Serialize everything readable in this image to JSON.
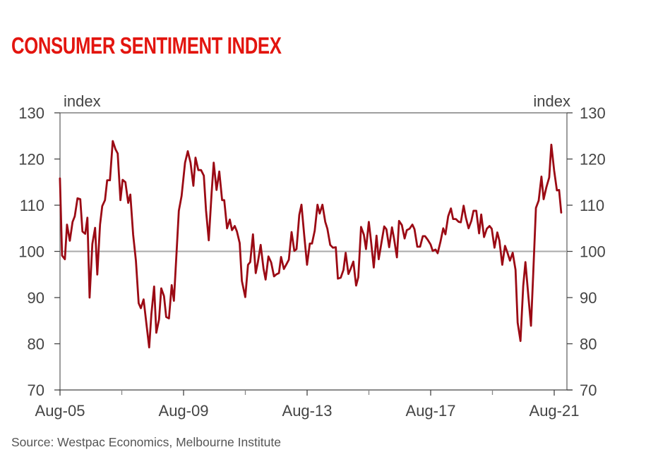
{
  "chart_data": {
    "type": "line",
    "title": "CONSUMER SENTIMENT INDEX",
    "source": "Source: Westpac Economics, Melbourne Institute",
    "ylabel_left": "index",
    "ylabel_right": "index",
    "xlabel": "",
    "ylim": [
      70,
      130
    ],
    "yticks": [
      70,
      80,
      90,
      100,
      110,
      120,
      130
    ],
    "ytick_labels": [
      "70",
      "80",
      "90",
      "100",
      "110",
      "120",
      "130"
    ],
    "xlim": [
      2005.583,
      2022.0
    ],
    "xticks_major": [
      2005.583,
      2009.583,
      2013.583,
      2017.583,
      2021.583
    ],
    "xtick_labels": [
      "Aug-05",
      "Aug-09",
      "Aug-13",
      "Aug-17",
      "Aug-21"
    ],
    "xticks_minor": [
      2007.583,
      2011.583,
      2015.583,
      2019.583
    ],
    "reference_line": 100,
    "grid": false,
    "legend": "none",
    "line_color": "#9b0a14",
    "series": [
      {
        "name": "Consumer Sentiment Index",
        "x": [
          2005.58,
          2005.65,
          2005.74,
          2005.81,
          2005.9,
          2005.99,
          2006.06,
          2006.15,
          2006.24,
          2006.31,
          2006.4,
          2006.47,
          2006.54,
          2006.63,
          2006.72,
          2006.79,
          2006.88,
          2006.95,
          2007.04,
          2007.11,
          2007.2,
          2007.29,
          2007.38,
          2007.45,
          2007.54,
          2007.61,
          2007.7,
          2007.79,
          2007.86,
          2007.95,
          2008.04,
          2008.13,
          2008.2,
          2008.29,
          2008.38,
          2008.47,
          2008.54,
          2008.63,
          2008.7,
          2008.79,
          2008.86,
          2008.95,
          2009.02,
          2009.11,
          2009.2,
          2009.27,
          2009.36,
          2009.43,
          2009.52,
          2009.63,
          2009.72,
          2009.81,
          2009.9,
          2009.97,
          2010.06,
          2010.15,
          2010.24,
          2010.31,
          2010.4,
          2010.49,
          2010.56,
          2010.65,
          2010.74,
          2010.83,
          2010.9,
          2010.99,
          2011.08,
          2011.15,
          2011.24,
          2011.31,
          2011.4,
          2011.47,
          2011.58,
          2011.67,
          2011.74,
          2011.83,
          2011.92,
          2011.99,
          2012.08,
          2012.17,
          2012.24,
          2012.33,
          2012.42,
          2012.51,
          2012.58,
          2012.67,
          2012.74,
          2012.83,
          2012.92,
          2012.99,
          2013.08,
          2013.17,
          2013.24,
          2013.33,
          2013.4,
          2013.49,
          2013.58,
          2013.67,
          2013.74,
          2013.83,
          2013.92,
          2013.99,
          2014.08,
          2014.17,
          2014.24,
          2014.33,
          2014.42,
          2014.51,
          2014.58,
          2014.67,
          2014.76,
          2014.83,
          2014.92,
          2014.99,
          2015.08,
          2015.17,
          2015.24,
          2015.33,
          2015.42,
          2015.49,
          2015.58,
          2015.65,
          2015.74,
          2015.83,
          2015.9,
          2015.99,
          2016.08,
          2016.15,
          2016.24,
          2016.33,
          2016.4,
          2016.49,
          2016.56,
          2016.65,
          2016.74,
          2016.81,
          2016.9,
          2016.99,
          2017.06,
          2017.15,
          2017.24,
          2017.33,
          2017.4,
          2017.49,
          2017.58,
          2017.65,
          2017.74,
          2017.81,
          2017.9,
          2017.99,
          2018.06,
          2018.15,
          2018.24,
          2018.31,
          2018.4,
          2018.49,
          2018.56,
          2018.65,
          2018.72,
          2018.81,
          2018.9,
          2018.97,
          2019.06,
          2019.15,
          2019.22,
          2019.31,
          2019.4,
          2019.49,
          2019.56,
          2019.65,
          2019.74,
          2019.81,
          2019.9,
          2019.99,
          2020.06,
          2020.15,
          2020.24,
          2020.33,
          2020.4,
          2020.49,
          2020.58,
          2020.65,
          2020.74,
          2020.83,
          2020.9,
          2020.99,
          2021.08,
          2021.17,
          2021.24,
          2021.33,
          2021.42,
          2021.49,
          2021.58,
          2021.67,
          2021.74,
          2021.81
        ],
        "values": [
          115.8,
          99.1,
          98.3,
          105.8,
          102.3,
          106.4,
          107.6,
          111.5,
          111.3,
          104.3,
          103.8,
          107.3,
          90.0,
          101.6,
          105.1,
          95.0,
          105.8,
          109.8,
          111.1,
          115.4,
          115.4,
          123.9,
          122.1,
          121.2,
          111.1,
          115.5,
          115.0,
          110.5,
          112.3,
          103.6,
          98.0,
          88.8,
          87.7,
          89.6,
          84.3,
          79.2,
          86.4,
          92.4,
          82.4,
          85.3,
          92.0,
          90.3,
          85.8,
          85.5,
          92.7,
          89.3,
          100.1,
          108.8,
          112.0,
          119.2,
          121.7,
          119.2,
          114.2,
          120.3,
          117.6,
          117.6,
          116.4,
          108.9,
          102.4,
          112.6,
          119.2,
          113.3,
          117.3,
          111.1,
          111.1,
          105.0,
          106.9,
          104.6,
          105.5,
          104.3,
          101.8,
          93.6,
          90.1,
          97.1,
          97.7,
          103.7,
          95.3,
          97.7,
          101.4,
          96.3,
          93.9,
          98.9,
          97.6,
          94.6,
          95.0,
          95.3,
          98.8,
          96.2,
          97.3,
          98.2,
          104.2,
          100.1,
          100.5,
          107.9,
          110.1,
          103.5,
          97.1,
          101.7,
          101.7,
          104.5,
          110.1,
          108.2,
          110.1,
          106.4,
          104.9,
          101.4,
          100.8,
          100.9,
          94.1,
          94.3,
          96.0,
          99.7,
          95.1,
          96.2,
          97.8,
          92.6,
          94.4,
          105.3,
          103.6,
          100.5,
          106.4,
          102.4,
          96.5,
          103.4,
          98.3,
          101.9,
          105.4,
          104.8,
          100.9,
          105.2,
          102.7,
          98.7,
          106.6,
          105.7,
          102.8,
          104.6,
          104.9,
          105.8,
          104.8,
          101.0,
          101.0,
          103.3,
          103.3,
          102.5,
          101.5,
          100.1,
          100.4,
          99.6,
          102.1,
          105.0,
          103.7,
          107.6,
          109.3,
          107.0,
          107.0,
          106.4,
          106.3,
          109.9,
          107.4,
          105.0,
          106.6,
          108.8,
          108.8,
          103.9,
          108.0,
          103.1,
          104.9,
          105.5,
          104.9,
          100.8,
          104.1,
          102.3,
          97.1,
          101.2,
          99.9,
          98.0,
          99.7,
          96.0,
          84.6,
          80.6,
          92.5,
          97.7,
          90.8,
          83.9,
          94.6,
          109.4,
          111.0,
          116.2,
          111.3,
          113.9,
          116.0,
          123.1,
          117.5,
          113.2,
          113.3,
          108.4
        ]
      }
    ]
  }
}
